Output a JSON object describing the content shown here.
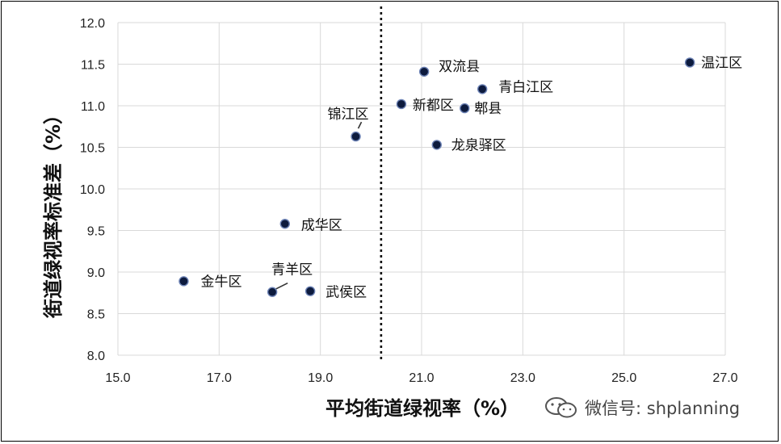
{
  "chart_data": {
    "type": "scatter",
    "xlabel": "平均街道绿视率（%）",
    "ylabel": "街道绿视率标准差（%）",
    "xlim": [
      15.0,
      27.0
    ],
    "ylim": [
      8.0,
      12.0
    ],
    "xticks": [
      "15.0",
      "17.0",
      "19.0",
      "21.0",
      "23.0",
      "25.0",
      "27.0"
    ],
    "yticks": [
      "8.0",
      "8.5",
      "9.0",
      "9.5",
      "10.0",
      "10.5",
      "11.0",
      "11.5",
      "12.0"
    ],
    "grid": true,
    "reference_line_x": 20.2,
    "points": [
      {
        "label": "温江区",
        "x": 26.3,
        "y": 11.52
      },
      {
        "label": "双流县",
        "x": 21.05,
        "y": 11.41
      },
      {
        "label": "青白江区",
        "x": 22.2,
        "y": 11.2
      },
      {
        "label": "新都区",
        "x": 20.6,
        "y": 11.02
      },
      {
        "label": "郫县",
        "x": 21.85,
        "y": 10.97
      },
      {
        "label": "锦江区",
        "x": 19.7,
        "y": 10.63
      },
      {
        "label": "龙泉驿区",
        "x": 21.3,
        "y": 10.53
      },
      {
        "label": "成华区",
        "x": 18.3,
        "y": 9.58
      },
      {
        "label": "金牛区",
        "x": 16.3,
        "y": 8.89
      },
      {
        "label": "青羊区",
        "x": 18.05,
        "y": 8.76
      },
      {
        "label": "武侯区",
        "x": 18.8,
        "y": 8.77
      }
    ],
    "marker_color": "#0d1b3e"
  },
  "watermark": {
    "text": "微信号: shplanning",
    "icon": "wechat-icon"
  }
}
